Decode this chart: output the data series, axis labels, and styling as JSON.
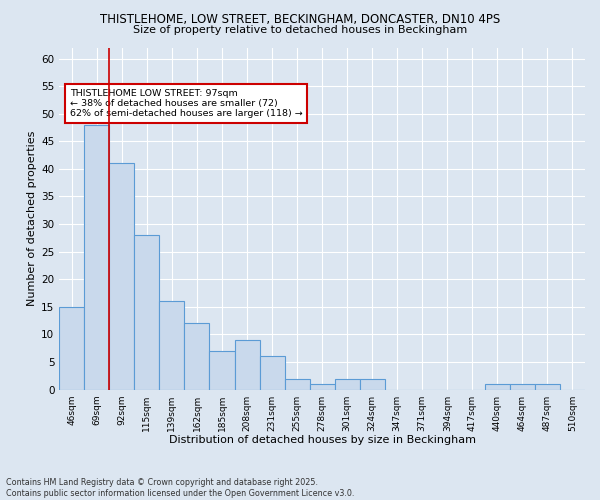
{
  "title1": "THISTLEHOME, LOW STREET, BECKINGHAM, DONCASTER, DN10 4PS",
  "title2": "Size of property relative to detached houses in Beckingham",
  "xlabel": "Distribution of detached houses by size in Beckingham",
  "ylabel": "Number of detached properties",
  "footnote": "Contains HM Land Registry data © Crown copyright and database right 2025.\nContains public sector information licensed under the Open Government Licence v3.0.",
  "bin_labels": [
    "46sqm",
    "69sqm",
    "92sqm",
    "115sqm",
    "139sqm",
    "162sqm",
    "185sqm",
    "208sqm",
    "231sqm",
    "255sqm",
    "278sqm",
    "301sqm",
    "324sqm",
    "347sqm",
    "371sqm",
    "394sqm",
    "417sqm",
    "440sqm",
    "464sqm",
    "487sqm",
    "510sqm"
  ],
  "bar_heights": [
    15,
    48,
    41,
    28,
    16,
    12,
    7,
    9,
    6,
    2,
    1,
    2,
    2,
    0,
    0,
    0,
    0,
    1,
    1,
    1,
    0
  ],
  "bar_color": "#c9d9ec",
  "bar_edge_color": "#5b9bd5",
  "ylim": [
    0,
    62
  ],
  "yticks": [
    0,
    5,
    10,
    15,
    20,
    25,
    30,
    35,
    40,
    45,
    50,
    55,
    60
  ],
  "vline_x": 1.5,
  "vline_color": "#cc0000",
  "annotation_text": "THISTLEHOME LOW STREET: 97sqm\n← 38% of detached houses are smaller (72)\n62% of semi-detached houses are larger (118) →",
  "bg_color": "#dce6f1",
  "plot_bg_color": "#dce6f1",
  "grid_color": "#ffffff"
}
